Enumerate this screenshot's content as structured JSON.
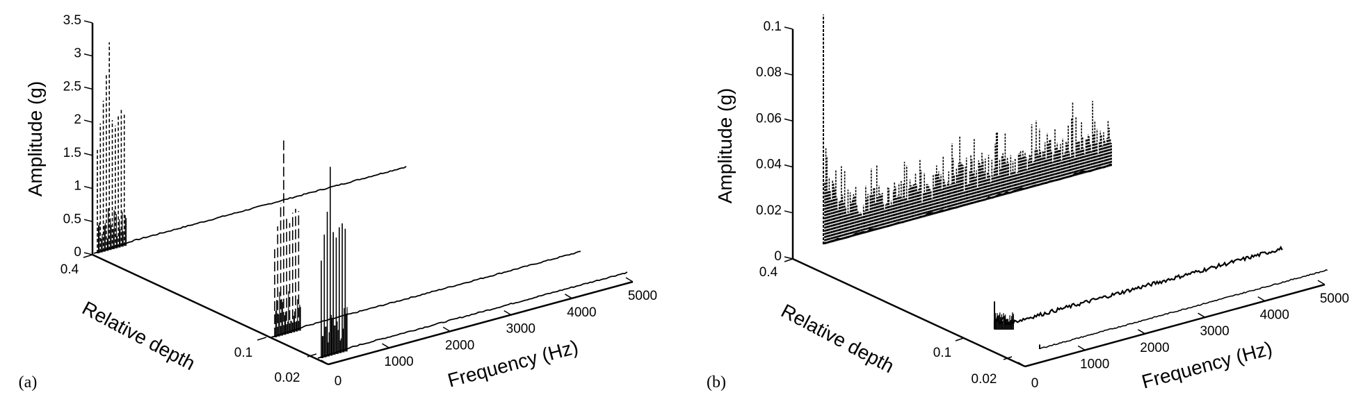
{
  "chart_data": [
    {
      "panel": "(a)",
      "type": "line",
      "projection": "3d-waterfall",
      "zlabel": "Amplitude (g)",
      "ylabel": "Relative depth",
      "xlabel": "Frequency (Hz)",
      "zlim": [
        0,
        3.5
      ],
      "xlim": [
        0,
        5000
      ],
      "z_ticks": [
        "0",
        "0.5",
        "1",
        "1.5",
        "2",
        "2.5",
        "3",
        "3.5"
      ],
      "depth_ticks": [
        "0.4",
        "0.1",
        "0.02"
      ],
      "x_ticks": [
        "0",
        "1000",
        "2000",
        "3000",
        "4000",
        "5000"
      ],
      "series": [
        {
          "name": "0.4",
          "style": "dashed",
          "peak_freqs_hz": [
            40,
            80,
            120,
            160,
            200,
            240,
            280,
            320,
            360,
            400
          ],
          "peak_amplitudes_g": [
            1.65,
            2.05,
            2.4,
            2.8,
            3.3,
            2.05,
            1.95,
            2.1,
            2.2,
            2.1
          ],
          "tail_level_g": 0.02,
          "tail_end_hz": 5000
        },
        {
          "name": "0.1",
          "style": "dashed",
          "peak_freqs_hz": [
            40,
            80,
            120,
            160,
            200,
            240,
            280,
            320,
            360
          ],
          "peak_amplitudes_g": [
            1.4,
            1.75,
            2.1,
            3.1,
            1.85,
            1.75,
            1.9,
            1.95,
            1.9
          ],
          "tail_level_g": 0.01,
          "tail_end_hz": 5000
        },
        {
          "name": "0.02",
          "style": "solid",
          "peak_freqs_hz": [
            40,
            80,
            120,
            160,
            200,
            240,
            280,
            320,
            360
          ],
          "peak_amplitudes_g": [
            1.55,
            1.95,
            2.3,
            3.0,
            1.95,
            1.85,
            2.0,
            2.05,
            1.95
          ],
          "tail_level_g": 0.01,
          "tail_end_hz": 5000
        }
      ]
    },
    {
      "panel": "(b)",
      "type": "line",
      "projection": "3d-waterfall",
      "zlabel": "Amplitude (g)",
      "ylabel": "Relative depth",
      "xlabel": "Frequency (Hz)",
      "zlim": [
        0,
        0.1
      ],
      "xlim": [
        0,
        5000
      ],
      "z_ticks": [
        "0",
        "0.02",
        "0.04",
        "0.06",
        "0.08",
        "0.1"
      ],
      "depth_ticks": [
        "0.4",
        "0.1",
        "0.02"
      ],
      "x_ticks": [
        "0",
        "1000",
        "2000",
        "3000",
        "4000",
        "5000"
      ],
      "series": [
        {
          "name": "0.4",
          "style": "dashed",
          "peak_freq_hz": 40,
          "peak_amplitude_g": 0.1,
          "noise_floor_g": [
            0.008,
            0.012
          ],
          "noise_peaks_g": [
            0.028,
            0.036
          ]
        },
        {
          "name": "0.1",
          "style": "solid",
          "peak_freq_hz": 40,
          "peak_amplitude_g": 0.012,
          "noise_floor_g": [
            0.001,
            0.004
          ]
        },
        {
          "name": "0.02",
          "style": "solid",
          "peak_freq_hz": 40,
          "peak_amplitude_g": 0.002,
          "noise_floor_g": [
            0.0005,
            0.001
          ]
        }
      ]
    }
  ],
  "panels": {
    "a": {
      "label": "(a)",
      "z_title": "Amplitude (g)",
      "depth_title": "Relative depth",
      "freq_title": "Frequency (Hz)",
      "z_ticks": [
        "0",
        "0.5",
        "1",
        "1.5",
        "2",
        "2.5",
        "3",
        "3.5"
      ],
      "depth_ticks": [
        "0.4",
        "0.1",
        "0.02"
      ],
      "freq_ticks": [
        "0",
        "1000",
        "2000",
        "3000",
        "4000",
        "5000"
      ]
    },
    "b": {
      "label": "(b)",
      "z_title": "Amplitude (g)",
      "depth_title": "Relative depth",
      "freq_title": "Frequency (Hz)",
      "z_ticks": [
        "0",
        "0.02",
        "0.04",
        "0.06",
        "0.08",
        "0.1"
      ],
      "depth_ticks": [
        "0.4",
        "0.1",
        "0.02"
      ],
      "freq_ticks": [
        "0",
        "1000",
        "2000",
        "3000",
        "4000",
        "5000"
      ]
    }
  },
  "colors": {
    "ink": "#000000",
    "background": "#ffffff"
  }
}
